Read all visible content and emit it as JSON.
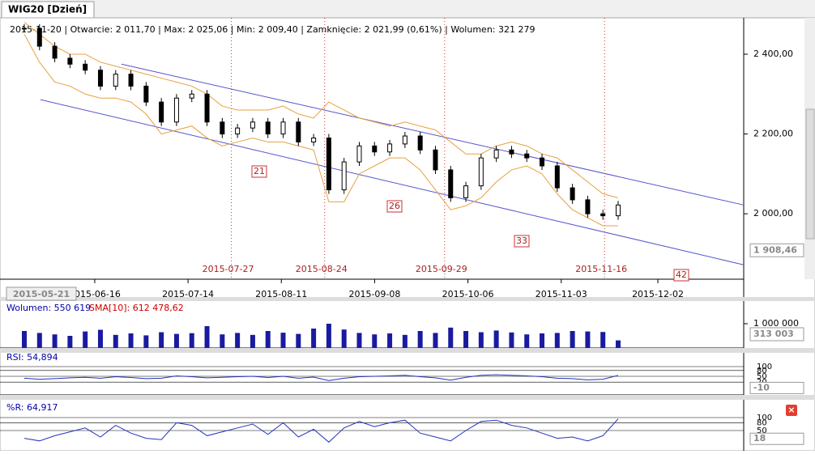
{
  "tab": "WIG20 [Dzień]",
  "info": "2015-11-20 | Otwarcie: 2 011,70 | Max: 2 025,06 | Min: 2 009,40 | Zamknięcie: 2 021,99 (0,61%)  | Wolumen: 321 279",
  "price": {
    "ylim": [
      1836,
      2475
    ],
    "yticks": [
      {
        "value": 2000,
        "label": "2 000,00"
      },
      {
        "value": 2200,
        "label": "2 200,00"
      },
      {
        "value": 2400,
        "label": "2 400,00"
      }
    ],
    "last_box": {
      "value": 1908.46,
      "label": "1 908,46"
    },
    "close": [
      2465,
      2420,
      2390,
      2375,
      2360,
      2320,
      2350,
      2320,
      2280,
      2230,
      2290,
      2300,
      2230,
      2200,
      2215,
      2230,
      2200,
      2230,
      2180,
      2190,
      2060,
      2130,
      2170,
      2155,
      2175,
      2195,
      2160,
      2110,
      2040,
      2070,
      2140,
      2160,
      2150,
      2140,
      2120,
      2065,
      2035,
      2000,
      1995,
      2022
    ],
    "upper": [
      2480,
      2450,
      2420,
      2400,
      2400,
      2380,
      2370,
      2360,
      2350,
      2340,
      2330,
      2320,
      2300,
      2270,
      2260,
      2260,
      2260,
      2270,
      2250,
      2240,
      2280,
      2260,
      2240,
      2230,
      2220,
      2230,
      2220,
      2210,
      2180,
      2150,
      2150,
      2170,
      2180,
      2170,
      2150,
      2140,
      2110,
      2080,
      2050,
      2040
    ],
    "lower": [
      2450,
      2380,
      2330,
      2320,
      2300,
      2290,
      2290,
      2280,
      2250,
      2200,
      2210,
      2220,
      2190,
      2170,
      2180,
      2190,
      2180,
      2180,
      2170,
      2160,
      2030,
      2030,
      2100,
      2120,
      2140,
      2140,
      2110,
      2060,
      2010,
      2020,
      2040,
      2080,
      2110,
      2120,
      2100,
      2050,
      2010,
      1990,
      1970,
      1970
    ],
    "channel_upper": [
      2375,
      2022
    ],
    "channel_lower": [
      2286,
      1872
    ],
    "events": [
      {
        "date": "2015-07-27",
        "label": "21"
      },
      {
        "date": "2015-08-24",
        "label": "26"
      },
      {
        "date": "2015-09-29",
        "label": "33"
      },
      {
        "date": "2015-11-16",
        "label": "42"
      }
    ],
    "xticks": [
      "2015-06-16",
      "2015-07-14",
      "2015-08-11",
      "2015-09-08",
      "2015-10-06",
      "2015-11-03",
      "2015-12-02"
    ],
    "start": "2015-05-21"
  },
  "volume": {
    "title": "Wolumen: 550 619",
    "sma": "SMA[10]: 612 478,62",
    "ylim": [
      0,
      1000000
    ],
    "yticks": [
      {
        "value": 1000000,
        "label": "1 000 000"
      }
    ],
    "last_box": {
      "value": 313003,
      "label": "313 003"
    },
    "values": [
      700000,
      620000,
      560000,
      500000,
      680000,
      750000,
      540000,
      600000,
      520000,
      650000,
      580000,
      610000,
      900000,
      560000,
      620000,
      540000,
      700000,
      630000,
      580000,
      800000,
      1000000,
      760000,
      620000,
      560000,
      600000,
      540000,
      700000,
      620000,
      840000,
      700000,
      650000,
      720000,
      640000,
      560000,
      600000,
      620000,
      700000,
      680000,
      660000,
      313003
    ]
  },
  "rsi": {
    "title": "RSI: 54,894",
    "ylim": [
      0,
      100
    ],
    "yticks": [
      20,
      50,
      80,
      100
    ],
    "last_box": {
      "value": -10,
      "label": "-10"
    },
    "values": [
      40,
      35,
      38,
      42,
      45,
      40,
      48,
      44,
      38,
      40,
      52,
      48,
      42,
      45,
      48,
      50,
      44,
      50,
      40,
      46,
      28,
      40,
      48,
      50,
      52,
      55,
      48,
      42,
      30,
      45,
      55,
      58,
      55,
      52,
      48,
      40,
      38,
      32,
      35,
      55
    ]
  },
  "wr": {
    "title": "%R: 64,917",
    "ylim": [
      0,
      100
    ],
    "yticks": [
      50,
      80,
      100
    ],
    "last_box": {
      "value": 18,
      "label": "18"
    },
    "values": [
      20,
      10,
      30,
      45,
      60,
      25,
      70,
      40,
      20,
      15,
      80,
      70,
      30,
      45,
      60,
      75,
      35,
      80,
      25,
      55,
      5,
      60,
      85,
      65,
      80,
      90,
      40,
      25,
      10,
      50,
      85,
      90,
      70,
      60,
      40,
      20,
      25,
      10,
      30,
      95
    ]
  }
}
